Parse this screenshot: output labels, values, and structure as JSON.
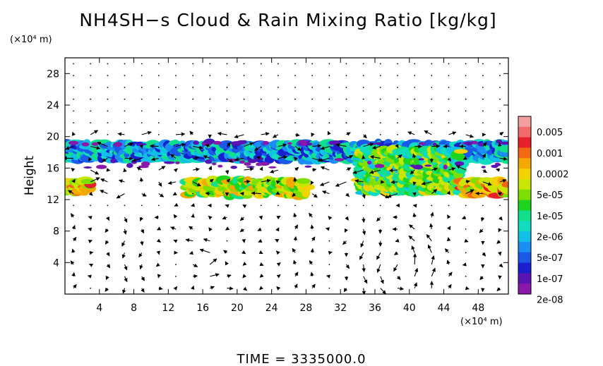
{
  "chart_data": {
    "type": "heatmap",
    "title": "NH4SH−s Cloud & Rain Mixing Ratio [kg/kg]",
    "ylabel": "Height",
    "y_unit": "(×10⁴ m)",
    "x_unit": "(×10⁴ m)",
    "time_label": "TIME  =  3335000.0",
    "xlim": [
      0,
      51.5
    ],
    "ylim": [
      0,
      30
    ],
    "x_ticks": [
      4,
      8,
      12,
      16,
      20,
      24,
      28,
      32,
      36,
      40,
      44,
      48
    ],
    "y_ticks": [
      4,
      8,
      12,
      16,
      20,
      24,
      28
    ],
    "colorbar": {
      "labels": [
        "0.005",
        "0.001",
        "0.0002",
        "5e-05",
        "1e-05",
        "2e-06",
        "5e-07",
        "1e-07",
        "2e-08"
      ],
      "colors": [
        "#f4a0a0",
        "#f46a6a",
        "#e8202a",
        "#f46a14",
        "#f4a800",
        "#f4d200",
        "#c8e600",
        "#7ee000",
        "#1ed41e",
        "#10e08a",
        "#10dcc0",
        "#10c0e8",
        "#1a8ef4",
        "#1a5ae6",
        "#1a20d0",
        "#5a14b4",
        "#8a18a8"
      ]
    },
    "regions": [
      {
        "x": [
          0,
          51.5
        ],
        "y": [
          17,
          19.2
        ],
        "level": 0.28,
        "note": "upper cloud band"
      },
      {
        "x": [
          0,
          3
        ],
        "y": [
          12.8,
          14.5
        ],
        "level": 0.7
      },
      {
        "x": [
          14,
          28
        ],
        "y": [
          12.5,
          14.5
        ],
        "level": 0.6
      },
      {
        "x": [
          34,
          46
        ],
        "y": [
          12.8,
          18.5
        ],
        "level": 0.5
      },
      {
        "x": [
          46,
          51.5
        ],
        "y": [
          12.5,
          14.5
        ],
        "level": 0.72
      }
    ],
    "vortices": [
      {
        "x": 16.5,
        "y": 4.2,
        "radius": 3.2
      },
      {
        "x": 39.5,
        "y": 3.5,
        "radius": 3.0
      }
    ]
  }
}
